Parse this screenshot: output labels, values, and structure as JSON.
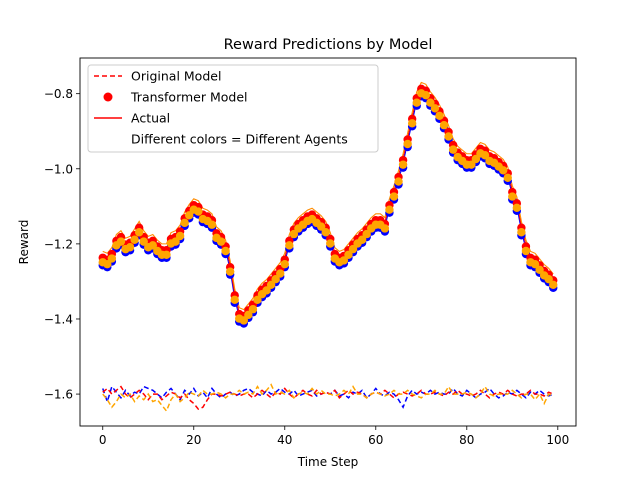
{
  "chart_data": {
    "type": "line",
    "title": "Reward Predictions by Model",
    "xlabel": "Time Step",
    "ylabel": "Reward",
    "xlim": [
      -5,
      104
    ],
    "ylim": [
      -1.685,
      -1.705
    ],
    "xticks": [
      0,
      20,
      40,
      60,
      80,
      100
    ],
    "yticks": [
      -1.6,
      -1.4,
      -1.2,
      -1.0,
      -0.8
    ],
    "ytick_labels": [
      "−1.6",
      "−1.4",
      "−1.2",
      "−1.0",
      "−0.8"
    ],
    "grid": false,
    "legend": {
      "position": "top-left",
      "entries": [
        {
          "label": "Original Model",
          "style": "dashed-line",
          "color": "#ff0000"
        },
        {
          "label": "Transformer Model",
          "style": "marker",
          "color": "#ff0000"
        },
        {
          "label": "Actual",
          "style": "solid-line",
          "color": "#ff0000"
        },
        {
          "label": "Different colors = Different Agents",
          "style": "none",
          "color": "#ffffff"
        }
      ]
    },
    "agent_colors": [
      "#0000ff",
      "#ff0000",
      "#ffa500"
    ],
    "x": [
      0,
      1,
      2,
      3,
      4,
      5,
      6,
      7,
      8,
      9,
      10,
      11,
      12,
      13,
      14,
      15,
      16,
      17,
      18,
      19,
      20,
      21,
      22,
      23,
      24,
      25,
      26,
      27,
      28,
      29,
      30,
      31,
      32,
      33,
      34,
      35,
      36,
      37,
      38,
      39,
      40,
      41,
      42,
      43,
      44,
      45,
      46,
      47,
      48,
      49,
      50,
      51,
      52,
      53,
      54,
      55,
      56,
      57,
      58,
      59,
      60,
      61,
      62,
      63,
      64,
      65,
      66,
      67,
      68,
      69,
      70,
      71,
      72,
      73,
      74,
      75,
      76,
      77,
      78,
      79,
      80,
      81,
      82,
      83,
      84,
      85,
      86,
      87,
      88,
      89,
      90,
      91,
      92,
      93,
      94,
      95,
      96,
      97,
      98,
      99
    ],
    "actual": [
      -1.245,
      -1.25,
      -1.235,
      -1.2,
      -1.19,
      -1.21,
      -1.205,
      -1.185,
      -1.165,
      -1.19,
      -1.205,
      -1.2,
      -1.215,
      -1.225,
      -1.225,
      -1.195,
      -1.19,
      -1.175,
      -1.14,
      -1.12,
      -1.105,
      -1.11,
      -1.13,
      -1.135,
      -1.145,
      -1.18,
      -1.19,
      -1.215,
      -1.27,
      -1.345,
      -1.395,
      -1.4,
      -1.385,
      -1.37,
      -1.345,
      -1.33,
      -1.32,
      -1.305,
      -1.29,
      -1.275,
      -1.25,
      -1.2,
      -1.17,
      -1.155,
      -1.145,
      -1.135,
      -1.13,
      -1.14,
      -1.15,
      -1.165,
      -1.195,
      -1.235,
      -1.245,
      -1.24,
      -1.225,
      -1.21,
      -1.195,
      -1.185,
      -1.17,
      -1.155,
      -1.145,
      -1.145,
      -1.155,
      -1.105,
      -1.07,
      -1.03,
      -0.985,
      -0.93,
      -0.875,
      -0.82,
      -0.795,
      -0.8,
      -0.82,
      -0.835,
      -0.855,
      -0.88,
      -0.91,
      -0.945,
      -0.965,
      -0.975,
      -0.985,
      -0.985,
      -0.97,
      -0.955,
      -0.96,
      -0.975,
      -0.98,
      -0.99,
      -1.0,
      -1.02,
      -1.07,
      -1.1,
      -1.165,
      -1.215,
      -1.245,
      -1.25,
      -1.265,
      -1.28,
      -1.29,
      -1.305
    ],
    "series": [
      {
        "name": "",
        "color": "#0000ff",
        "offset": 0.0,
        "dy": 0.0,
        "noise": [
          -1.585,
          -1.62,
          -1.58,
          -1.595,
          -1.61,
          -1.59,
          -1.605,
          -1.595,
          -1.6,
          -1.58,
          -1.585,
          -1.59,
          -1.6,
          -1.61,
          -1.595,
          -1.585,
          -1.6,
          -1.615,
          -1.59,
          -1.6,
          -1.585,
          -1.605,
          -1.595,
          -1.61,
          -1.585,
          -1.6,
          -1.61,
          -1.6,
          -1.595,
          -1.605,
          -1.6,
          -1.59,
          -1.585,
          -1.595,
          -1.6,
          -1.605,
          -1.59,
          -1.6,
          -1.595,
          -1.585,
          -1.595,
          -1.6,
          -1.59,
          -1.605,
          -1.6,
          -1.595,
          -1.59,
          -1.605,
          -1.6,
          -1.595,
          -1.6,
          -1.59,
          -1.605,
          -1.6,
          -1.61,
          -1.595,
          -1.6,
          -1.59,
          -1.61,
          -1.6,
          -1.585,
          -1.6,
          -1.605,
          -1.595,
          -1.6,
          -1.615,
          -1.635,
          -1.605,
          -1.59,
          -1.6,
          -1.595,
          -1.6,
          -1.59,
          -1.6,
          -1.595,
          -1.6,
          -1.6,
          -1.585,
          -1.6,
          -1.605,
          -1.59,
          -1.6,
          -1.61,
          -1.6,
          -1.595,
          -1.585,
          -1.6,
          -1.61,
          -1.605,
          -1.595,
          -1.6,
          -1.59,
          -1.6,
          -1.61,
          -1.595,
          -1.6,
          -1.59,
          -1.6,
          -1.605,
          -1.6
        ]
      },
      {
        "name": "",
        "color": "#ff0000",
        "offset": 0.0,
        "dy": 0.0,
        "noise": [
          -1.595,
          -1.585,
          -1.6,
          -1.59,
          -1.58,
          -1.6,
          -1.61,
          -1.6,
          -1.59,
          -1.6,
          -1.615,
          -1.6,
          -1.6,
          -1.615,
          -1.605,
          -1.595,
          -1.6,
          -1.61,
          -1.6,
          -1.615,
          -1.625,
          -1.64,
          -1.635,
          -1.615,
          -1.6,
          -1.6,
          -1.605,
          -1.6,
          -1.595,
          -1.6,
          -1.605,
          -1.6,
          -1.6,
          -1.61,
          -1.6,
          -1.59,
          -1.6,
          -1.61,
          -1.595,
          -1.6,
          -1.585,
          -1.6,
          -1.61,
          -1.6,
          -1.59,
          -1.6,
          -1.605,
          -1.59,
          -1.6,
          -1.595,
          -1.6,
          -1.59,
          -1.61,
          -1.6,
          -1.59,
          -1.6,
          -1.595,
          -1.6,
          -1.61,
          -1.6,
          -1.595,
          -1.6,
          -1.59,
          -1.6,
          -1.61,
          -1.6,
          -1.595,
          -1.6,
          -1.605,
          -1.6,
          -1.59,
          -1.6,
          -1.6,
          -1.595,
          -1.6,
          -1.605,
          -1.595,
          -1.6,
          -1.59,
          -1.6,
          -1.6,
          -1.605,
          -1.6,
          -1.59,
          -1.6,
          -1.61,
          -1.6,
          -1.595,
          -1.6,
          -1.59,
          -1.6,
          -1.605,
          -1.6,
          -1.6,
          -1.59,
          -1.6,
          -1.6,
          -1.605,
          -1.595,
          -1.6
        ]
      },
      {
        "name": "",
        "color": "#ffa500",
        "offset": 0.0,
        "dy": 0.0,
        "noise": [
          -1.6,
          -1.615,
          -1.635,
          -1.62,
          -1.6,
          -1.61,
          -1.6,
          -1.62,
          -1.605,
          -1.615,
          -1.6,
          -1.62,
          -1.615,
          -1.63,
          -1.645,
          -1.615,
          -1.6,
          -1.62,
          -1.61,
          -1.595,
          -1.6,
          -1.605,
          -1.59,
          -1.6,
          -1.6,
          -1.595,
          -1.6,
          -1.61,
          -1.6,
          -1.6,
          -1.59,
          -1.6,
          -1.595,
          -1.6,
          -1.58,
          -1.6,
          -1.59,
          -1.575,
          -1.6,
          -1.595,
          -1.6,
          -1.59,
          -1.61,
          -1.6,
          -1.595,
          -1.6,
          -1.585,
          -1.6,
          -1.59,
          -1.6,
          -1.6,
          -1.605,
          -1.6,
          -1.59,
          -1.6,
          -1.58,
          -1.6,
          -1.6,
          -1.61,
          -1.6,
          -1.595,
          -1.6,
          -1.605,
          -1.6,
          -1.59,
          -1.6,
          -1.6,
          -1.59,
          -1.6,
          -1.605,
          -1.61,
          -1.6,
          -1.6,
          -1.59,
          -1.6,
          -1.6,
          -1.58,
          -1.6,
          -1.6,
          -1.6,
          -1.595,
          -1.6,
          -1.61,
          -1.6,
          -1.58,
          -1.6,
          -1.605,
          -1.6,
          -1.6,
          -1.6,
          -1.59,
          -1.6,
          -1.61,
          -1.6,
          -1.6,
          -1.615,
          -1.6,
          -1.625,
          -1.6,
          -1.605
        ]
      }
    ]
  }
}
